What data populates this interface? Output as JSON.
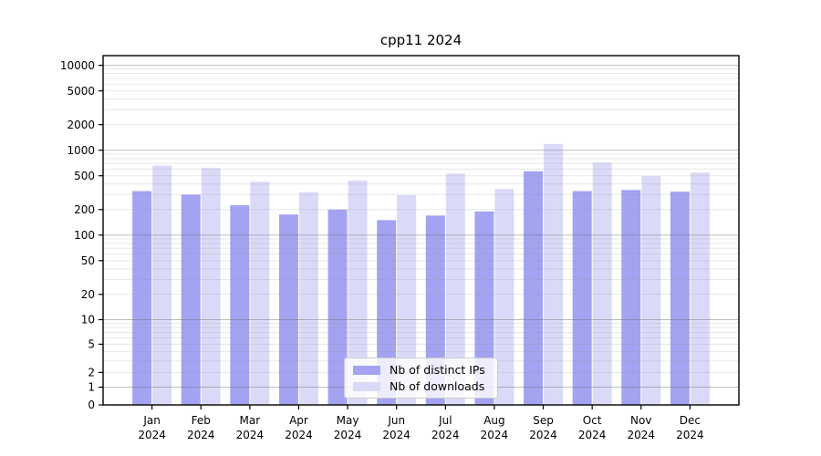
{
  "colors": {
    "background": "#ffffff",
    "axis": "#000000",
    "grid_major": "rgba(110,110,110,0.45)",
    "grid_minor": "rgba(150,150,150,0.22)",
    "series_ips": "#a3a3f2",
    "series_downloads": "#dadaf8"
  },
  "chart_data": {
    "type": "bar",
    "title": "cpp11 2024",
    "categories": [
      "Jan",
      "Feb",
      "Mar",
      "Apr",
      "May",
      "Jun",
      "Jul",
      "Aug",
      "Sep",
      "Oct",
      "Nov",
      "Dec"
    ],
    "x_year": "2024",
    "series": [
      {
        "name": "Nb of distinct IPs",
        "color": "#a3a3f2",
        "values": [
          330,
          300,
          225,
          175,
          200,
          150,
          170,
          190,
          565,
          330,
          340,
          325
        ]
      },
      {
        "name": "Nb of downloads",
        "color": "#dadaf8",
        "values": [
          660,
          615,
          425,
          320,
          440,
          295,
          530,
          350,
          1185,
          715,
          495,
          545
        ]
      }
    ],
    "xlabel": "",
    "ylabel": "",
    "y_scale": "pseudo-log (asinh, sigma=1)",
    "y_ticks": [
      10000,
      5000,
      2000,
      1000,
      500,
      200,
      100,
      50,
      20,
      10,
      5,
      2,
      1,
      0
    ],
    "y_major_gridlines": [
      1,
      10,
      100,
      1000,
      10000
    ],
    "ylim": [
      0,
      13000
    ],
    "grid": true,
    "legend_position": "inside-bottom-center"
  }
}
